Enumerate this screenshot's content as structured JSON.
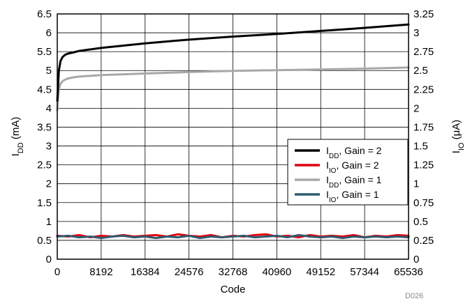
{
  "chart_data": {
    "type": "line",
    "title": "",
    "xlabel": "Code",
    "ylabel_left": {
      "main": "I",
      "sub": "DD",
      "unit": " (mA)"
    },
    "ylabel_right": {
      "main": "I",
      "sub": "IO",
      "unit": " (μA)"
    },
    "xlim": [
      0,
      65536
    ],
    "ylim_left": [
      0,
      6.5
    ],
    "ylim_right": [
      0,
      3.25
    ],
    "x_ticks": [
      "0",
      "8192",
      "16384",
      "24576",
      "32768",
      "40960",
      "49152",
      "57344",
      "65536"
    ],
    "y_ticks_left": [
      "0",
      "0.5",
      "1",
      "1.5",
      "2",
      "2.5",
      "3",
      "3.5",
      "4",
      "4.5",
      "5",
      "5.5",
      "6",
      "6.5"
    ],
    "y_ticks_right": [
      "0",
      "0.25",
      "0.5",
      "0.75",
      "1",
      "1.25",
      "1.5",
      "1.75",
      "2",
      "2.25",
      "2.5",
      "2.75",
      "3",
      "3.25"
    ],
    "grid": true,
    "legend_position": "right",
    "figure_id": "D026",
    "series": [
      {
        "legend": {
          "main": "I",
          "sub": "DD",
          "rest": ", Gain = 2"
        },
        "color": "#000000",
        "axis": "left",
        "x": [
          0,
          300,
          600,
          1000,
          1500,
          2000,
          3000,
          4096,
          8192,
          16384,
          24576,
          32768,
          40960,
          49152,
          57344,
          65536
        ],
        "y": [
          4.2,
          5.0,
          5.25,
          5.36,
          5.42,
          5.45,
          5.48,
          5.52,
          5.6,
          5.72,
          5.82,
          5.9,
          5.97,
          6.05,
          6.13,
          6.22
        ]
      },
      {
        "legend": {
          "main": "I",
          "sub": "IO",
          "rest": ", Gain = 2"
        },
        "color": "#e3000f",
        "axis": "right",
        "x": [
          0,
          2048,
          4096,
          6144,
          8192,
          10240,
          12288,
          14336,
          16384,
          18432,
          20480,
          22528,
          24576,
          26624,
          28672,
          30720,
          32768,
          34816,
          36864,
          38912,
          40960,
          43008,
          45056,
          47104,
          49152,
          51200,
          53248,
          55296,
          57344,
          59392,
          61440,
          63488,
          65536
        ],
        "y": [
          0.31,
          0.3,
          0.32,
          0.29,
          0.31,
          0.3,
          0.32,
          0.3,
          0.31,
          0.32,
          0.3,
          0.33,
          0.31,
          0.3,
          0.32,
          0.29,
          0.31,
          0.3,
          0.32,
          0.33,
          0.3,
          0.31,
          0.29,
          0.32,
          0.3,
          0.31,
          0.3,
          0.32,
          0.29,
          0.31,
          0.3,
          0.32,
          0.31
        ]
      },
      {
        "legend": {
          "main": "I",
          "sub": "DD",
          "rest": ", Gain = 1"
        },
        "color": "#a8a8a8",
        "axis": "left",
        "x": [
          0,
          300,
          600,
          1000,
          1500,
          2000,
          3000,
          4096,
          8192,
          16384,
          24576,
          32768,
          40960,
          49152,
          57344,
          65536
        ],
        "y": [
          3.95,
          4.5,
          4.65,
          4.72,
          4.76,
          4.79,
          4.82,
          4.84,
          4.88,
          4.92,
          4.96,
          4.99,
          5.01,
          5.03,
          5.05,
          5.08
        ]
      },
      {
        "legend": {
          "main": "I",
          "sub": "IO",
          "rest": ", Gain = 1"
        },
        "color": "#2f5b6e",
        "axis": "right",
        "x": [
          0,
          2048,
          4096,
          6144,
          8192,
          10240,
          12288,
          14336,
          16384,
          18432,
          20480,
          22528,
          24576,
          26624,
          28672,
          30720,
          32768,
          34816,
          36864,
          38912,
          40960,
          43008,
          45056,
          47104,
          49152,
          51200,
          53248,
          55296,
          57344,
          59392,
          61440,
          63488,
          65536
        ],
        "y": [
          0.3,
          0.31,
          0.29,
          0.3,
          0.28,
          0.3,
          0.31,
          0.29,
          0.3,
          0.28,
          0.3,
          0.29,
          0.31,
          0.28,
          0.3,
          0.29,
          0.3,
          0.31,
          0.29,
          0.3,
          0.31,
          0.29,
          0.32,
          0.3,
          0.29,
          0.3,
          0.28,
          0.3,
          0.29,
          0.3,
          0.29,
          0.3,
          0.29
        ]
      }
    ]
  }
}
